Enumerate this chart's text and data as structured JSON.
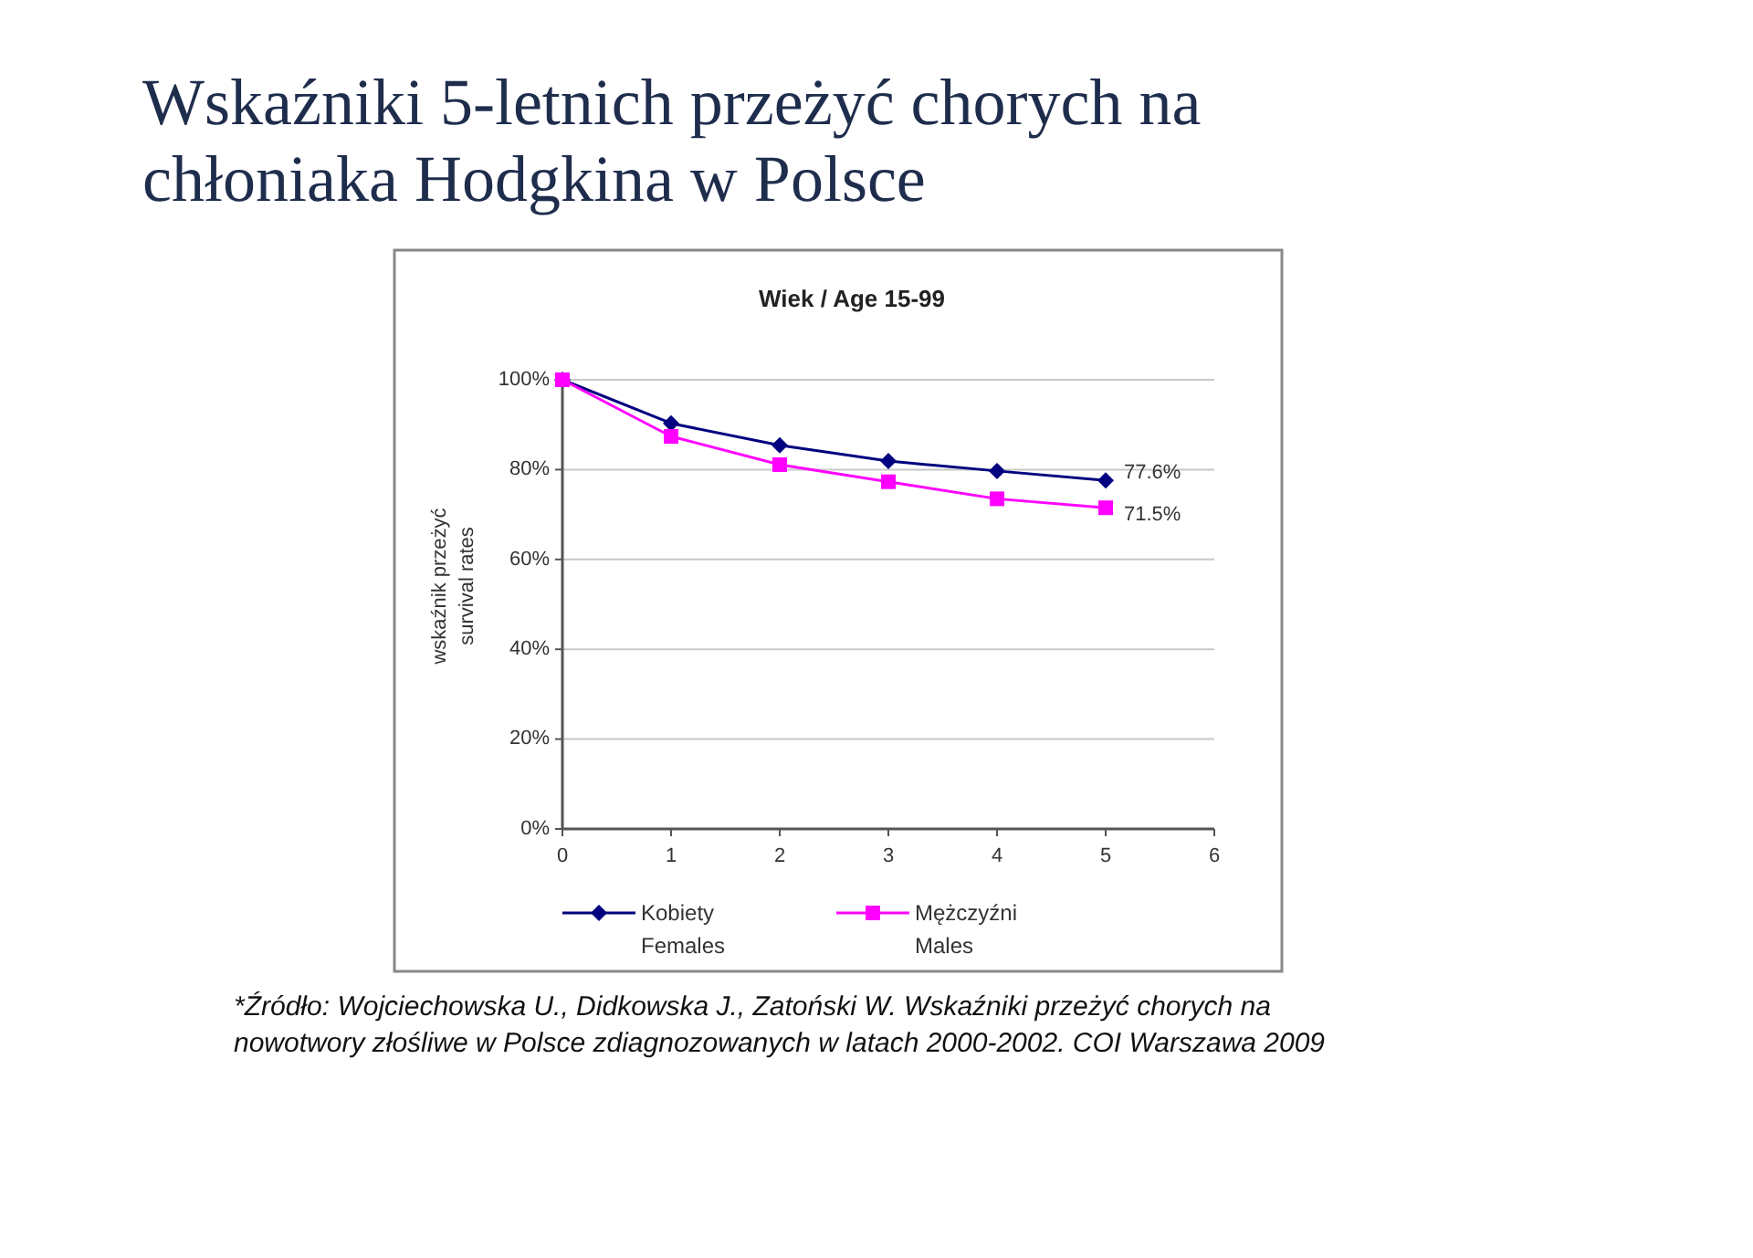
{
  "chart_data": {
    "type": "line",
    "title": "Wskaźniki 5-letnich przeżyć chorych na\nchłoniaka Hodgkina  w Polsce",
    "subtitle": "Wiek / Age 15-99",
    "ylabel": "wskaźnik przeżyć\nsurvival rates",
    "x": [
      0,
      1,
      2,
      3,
      4,
      5
    ],
    "series": [
      {
        "name": "Kobiety\nFemales",
        "color": "#000080",
        "marker": "diamond",
        "values": [
          100,
          90.3,
          85.4,
          81.9,
          79.7,
          77.6
        ],
        "value_labels": [
          null,
          null,
          null,
          null,
          null,
          "77.6%"
        ]
      },
      {
        "name": "Mężczyźni\nMales",
        "color": "#ff00ff",
        "marker": "square",
        "values": [
          100,
          87.4,
          81.1,
          77.3,
          73.5,
          71.5
        ],
        "value_labels": [
          null,
          null,
          null,
          null,
          null,
          "71.5%"
        ]
      }
    ],
    "xlim": [
      0,
      6
    ],
    "xticks": [
      0,
      1,
      2,
      3,
      4,
      5,
      6
    ],
    "ylim": [
      0,
      100
    ],
    "yticks": [
      {
        "value": 0,
        "label": "0%"
      },
      {
        "value": 20,
        "label": "20%"
      },
      {
        "value": 40,
        "label": "40%"
      },
      {
        "value": 60,
        "label": "60%"
      },
      {
        "value": 80,
        "label": "80%"
      },
      {
        "value": 100,
        "label": "100%"
      }
    ],
    "grid": "y",
    "legend": "bottom",
    "annotations": [
      "*Źródło: Wojciechowska U., Didkowska J., Zatoński W. Wskaźniki przeżyć chorych na\nnowotwory złośliwe w Polsce zdiagnozowanych w latach 2000-2002. COI Warszawa 2009"
    ]
  }
}
